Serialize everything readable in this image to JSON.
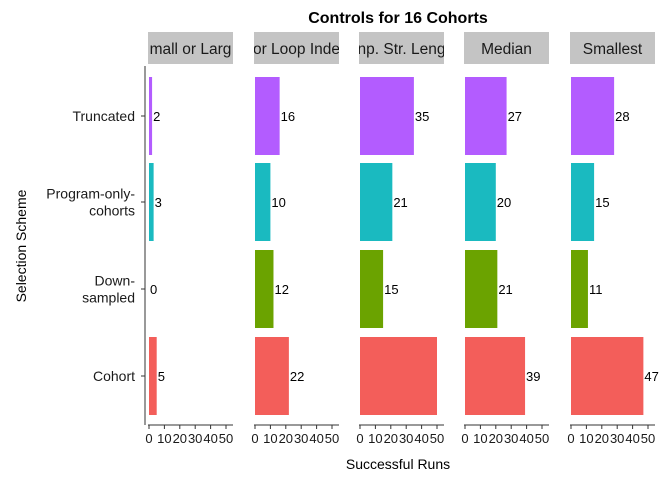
{
  "chart_data": {
    "type": "bar",
    "orientation": "horizontal",
    "title": "Controls for 16 Cohorts",
    "xlabel": "Successful Runs",
    "ylabel": "Selection Scheme",
    "xlim": [
      0,
      50
    ],
    "x_ticks": [
      "0",
      "10",
      "20",
      "30",
      "40",
      "50"
    ],
    "categories": [
      "Truncated",
      "Program-only-cohorts",
      "Down-sampled",
      "Cohort"
    ],
    "category_labels": [
      [
        "Truncated"
      ],
      [
        "Program-only-",
        "cohorts"
      ],
      [
        "Down-",
        "sampled"
      ],
      [
        "Cohort"
      ]
    ],
    "colors": {
      "Truncated": "#B35CFF",
      "Program-only-cohorts": "#1ABAC0",
      "Down-sampled": "#6BA300",
      "Cohort": "#F35E5A"
    },
    "legend": "none",
    "grid": false,
    "panels": [
      {
        "strip": "Small or Large",
        "strip_visible": "mall or Larg",
        "values": [
          2,
          3,
          0,
          5
        ],
        "labels": [
          "2",
          "3",
          "0",
          "5"
        ]
      },
      {
        "strip": "For Loop Index",
        "strip_visible": "or Loop Inde",
        "values": [
          16,
          10,
          12,
          22
        ],
        "labels": [
          "16",
          "10",
          "12",
          "22"
        ]
      },
      {
        "strip": "Comp. Str. Lengths",
        "strip_visible": "np. Str. Leng",
        "values": [
          35,
          21,
          15,
          50
        ],
        "labels": [
          "35",
          "21",
          "15",
          ""
        ]
      },
      {
        "strip": "Median",
        "strip_visible": "Median",
        "values": [
          27,
          20,
          21,
          39
        ],
        "labels": [
          "27",
          "20",
          "21",
          "39"
        ]
      },
      {
        "strip": "Smallest",
        "strip_visible": "Smallest",
        "values": [
          28,
          15,
          11,
          47
        ],
        "labels": [
          "28",
          "15",
          "11",
          "47"
        ]
      }
    ]
  }
}
